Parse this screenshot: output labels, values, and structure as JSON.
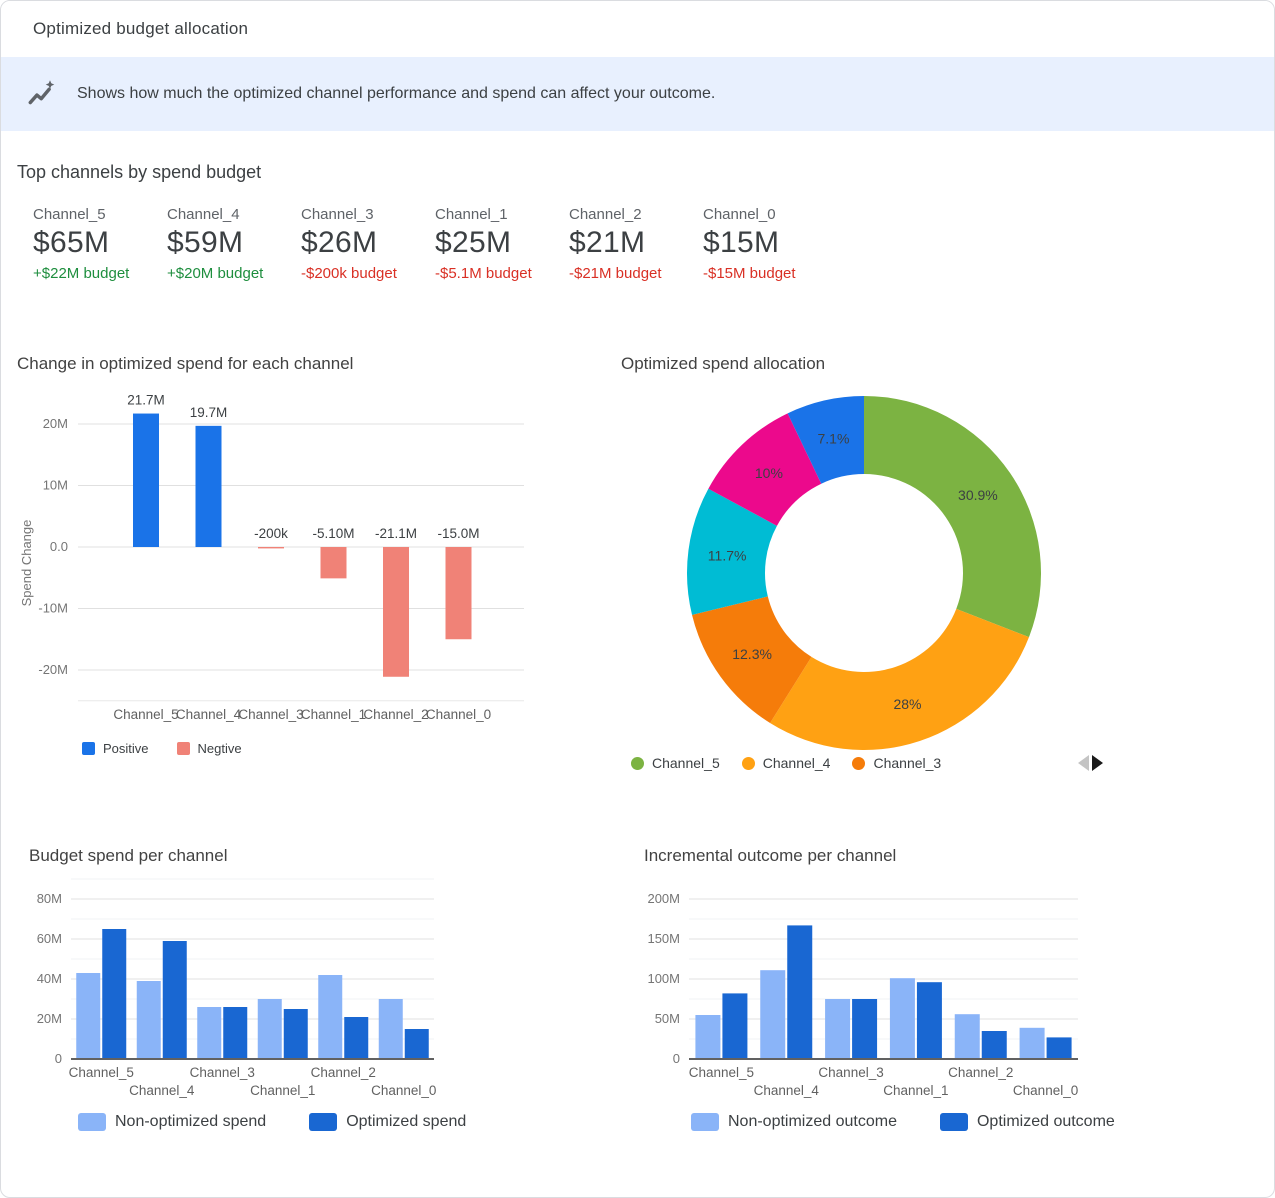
{
  "header": {
    "title": "Optimized budget allocation"
  },
  "banner": {
    "icon": "auto-graph-icon",
    "icon_color": "#5F6368",
    "background": "#E8F0FE",
    "text": "Shows how much the optimized channel performance and spend can affect your outcome."
  },
  "top_channels": {
    "title": "Top channels by spend budget",
    "colors": {
      "positive": "#1E8E3E",
      "negative": "#D93025"
    },
    "channels": [
      {
        "name": "Channel_5",
        "value": "$65M",
        "delta": "+$22M budget",
        "direction": "up"
      },
      {
        "name": "Channel_4",
        "value": "$59M",
        "delta": "+$20M budget",
        "direction": "up"
      },
      {
        "name": "Channel_3",
        "value": "$26M",
        "delta": "-$200k budget",
        "direction": "down"
      },
      {
        "name": "Channel_1",
        "value": "$25M",
        "delta": "-$5.1M budget",
        "direction": "down"
      },
      {
        "name": "Channel_2",
        "value": "$21M",
        "delta": "-$21M budget",
        "direction": "down"
      },
      {
        "name": "Channel_0",
        "value": "$15M",
        "delta": "-$15M budget",
        "direction": "down"
      }
    ]
  },
  "chart_data": [
    {
      "id": "spend_change",
      "type": "bar",
      "title": "Change in optimized spend for each channel",
      "ylabel": "Spend Change",
      "categories": [
        "Channel_5",
        "Channel_4",
        "Channel_3",
        "Channel_1",
        "Channel_2",
        "Channel_0"
      ],
      "values_millions": [
        21.7,
        19.7,
        -0.2,
        -5.1,
        -21.1,
        -15.0
      ],
      "bar_labels": [
        "21.7M",
        "19.7M",
        "-200k",
        "-5.10M",
        "-21.1M",
        "-15.0M"
      ],
      "yticks": [
        {
          "v": 20,
          "label": "20M"
        },
        {
          "v": 10,
          "label": "10M"
        },
        {
          "v": 0,
          "label": "0.0"
        },
        {
          "v": -10,
          "label": "-10M"
        },
        {
          "v": -20,
          "label": "-20M"
        }
      ],
      "ylim": [
        -25,
        25
      ],
      "grid": true,
      "colors": {
        "positive": "#1A73E8",
        "negative": "#F08277"
      },
      "legend": [
        {
          "label": "Positive",
          "color": "#1A73E8"
        },
        {
          "label": "Negtive",
          "color": "#F08277"
        }
      ]
    },
    {
      "id": "spend_allocation",
      "type": "pie",
      "title": "Optimized spend allocation",
      "donut": true,
      "slices": [
        {
          "pct": 30.9,
          "label": "30.9%",
          "color": "#7CB342"
        },
        {
          "pct": 28,
          "label": "28%",
          "color": "#FFA113"
        },
        {
          "pct": 12.3,
          "label": "12.3%",
          "color": "#F57C0A"
        },
        {
          "pct": 11.7,
          "label": "11.7%",
          "color": "#00BCD4"
        },
        {
          "pct": 10,
          "label": "10%",
          "color": "#EC098C"
        },
        {
          "pct": 7.1,
          "label": "7.1%",
          "color": "#1A73E8"
        }
      ],
      "legend": [
        {
          "label": "Channel_5",
          "color": "#7CB342"
        },
        {
          "label": "Channel_4",
          "color": "#FFA113"
        },
        {
          "label": "Channel_3",
          "color": "#F57C0A"
        }
      ],
      "pagination": {
        "prev_enabled": false,
        "next_enabled": true
      }
    },
    {
      "id": "budget_spend",
      "type": "bar",
      "title": "Budget spend per channel",
      "categories": [
        "Channel_5",
        "Channel_4",
        "Channel_3",
        "Channel_1",
        "Channel_2",
        "Channel_0"
      ],
      "series": [
        {
          "name": "Non-optimized spend",
          "color": "#8AB4F8",
          "values_millions": [
            43,
            39,
            26,
            30,
            42,
            30
          ]
        },
        {
          "name": "Optimized spend",
          "color": "#1967D2",
          "values_millions": [
            65,
            59,
            26,
            25,
            21,
            15
          ]
        }
      ],
      "yticks": [
        {
          "v": 0,
          "label": "0"
        },
        {
          "v": 20,
          "label": "20M"
        },
        {
          "v": 40,
          "label": "40M"
        },
        {
          "v": 60,
          "label": "60M"
        },
        {
          "v": 80,
          "label": "80M"
        }
      ],
      "minor_step": 10,
      "ylim": [
        0,
        90
      ],
      "grid": true,
      "legend_position": "bottom"
    },
    {
      "id": "incremental_outcome",
      "type": "bar",
      "title": "Incremental outcome per channel",
      "categories": [
        "Channel_5",
        "Channel_4",
        "Channel_3",
        "Channel_1",
        "Channel_2",
        "Channel_0"
      ],
      "series": [
        {
          "name": "Non-optimized outcome",
          "color": "#8AB4F8",
          "values_millions": [
            55,
            111,
            75,
            101,
            56,
            39
          ]
        },
        {
          "name": "Optimized outcome",
          "color": "#1967D2",
          "values_millions": [
            82,
            167,
            75,
            96,
            35,
            27
          ]
        }
      ],
      "yticks": [
        {
          "v": 0,
          "label": "0"
        },
        {
          "v": 50,
          "label": "50M"
        },
        {
          "v": 100,
          "label": "100M"
        },
        {
          "v": 150,
          "label": "150M"
        },
        {
          "v": 200,
          "label": "200M"
        }
      ],
      "minor_step": 25,
      "ylim": [
        0,
        220
      ],
      "grid": true,
      "legend_position": "bottom"
    }
  ]
}
